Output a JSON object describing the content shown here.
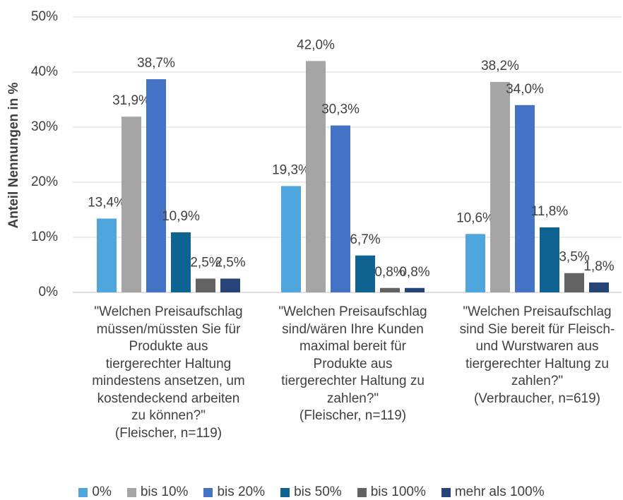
{
  "chart_data": {
    "type": "bar",
    "y_label": "Anteil Nennungen in %",
    "categories": [
      "\"Welchen Preisaufschlag\nmüssen/müssten Sie für\nProdukte aus\ntiergerechter Haltung\nmindestens ansetzen, um\nkostendeckend  arbeiten\nzu können?\"\n(Fleischer, n=119)",
      "\"Welchen Preisaufschlag\nsind/wären Ihre Kunden\nmaximal bereit für\nProdukte aus\ntiergerechter Haltung zu\nzahlen?\"\n(Fleischer, n=119)",
      "\"Welchen Preisaufschlag\nsind Sie bereit für Fleisch-\nund Wurstwaren aus\ntiergerechter Haltung zu\nzahlen?\"\n(Verbraucher, n=619)"
    ],
    "series": [
      {
        "name": "0%",
        "color": "#4ea6dc",
        "values": [
          13.4,
          19.3,
          10.6
        ],
        "value_labels": [
          "13,4%",
          "19,3%",
          "10,6%"
        ]
      },
      {
        "name": "bis 10%",
        "color": "#a5a5a5",
        "values": [
          31.9,
          42.0,
          38.2
        ],
        "value_labels": [
          "31,9%",
          "42,0%",
          "38,2%"
        ]
      },
      {
        "name": "bis 20%",
        "color": "#4472c4",
        "values": [
          38.7,
          30.3,
          34.0
        ],
        "value_labels": [
          "38,7%",
          "30,3%",
          "34,0%"
        ]
      },
      {
        "name": "bis 50%",
        "color": "#0f6391",
        "values": [
          10.9,
          6.7,
          11.8
        ],
        "value_labels": [
          "10,9%",
          "6,7%",
          "11,8%"
        ]
      },
      {
        "name": "bis 100%",
        "color": "#636363",
        "values": [
          2.5,
          0.8,
          3.5
        ],
        "value_labels": [
          "2,5%",
          "0,8%",
          "3,5%"
        ]
      },
      {
        "name": "mehr als 100%",
        "color": "#264478",
        "values": [
          2.5,
          0.8,
          1.8
        ],
        "value_labels": [
          "2,5%",
          "0,8%",
          "1,8%"
        ]
      }
    ],
    "ylim": [
      0,
      50
    ],
    "yticks": [
      {
        "value": 0,
        "label": "0%"
      },
      {
        "value": 10,
        "label": "10%"
      },
      {
        "value": 20,
        "label": "20%"
      },
      {
        "value": 30,
        "label": "30%"
      },
      {
        "value": 40,
        "label": "40%"
      },
      {
        "value": 50,
        "label": "50%"
      }
    ],
    "grid": true,
    "legend": "bottom"
  }
}
